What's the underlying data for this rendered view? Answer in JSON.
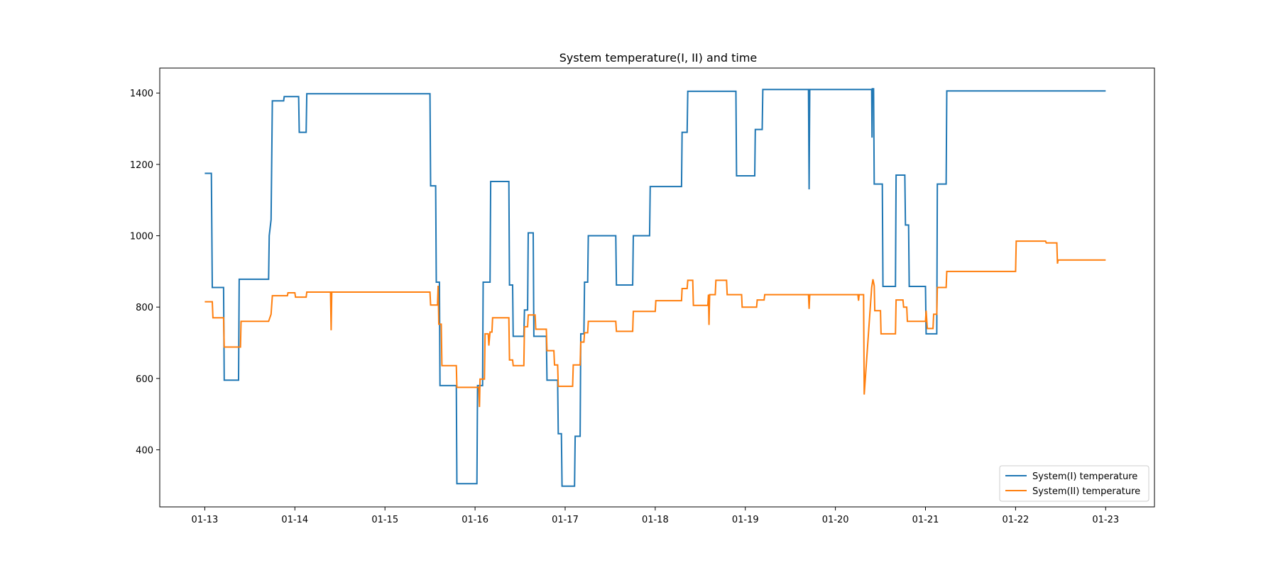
{
  "chart_data": {
    "type": "line",
    "title": "System temperature(I, II) and time",
    "xlabel": "",
    "ylabel": "",
    "x_range": [
      "01-12 12:00",
      "01-23 13:00"
    ],
    "ylim": [
      240,
      1470
    ],
    "x_ticks": [
      "01-13",
      "01-14",
      "01-15",
      "01-16",
      "01-17",
      "01-18",
      "01-19",
      "01-20",
      "01-21",
      "01-22",
      "01-23"
    ],
    "y_ticks": [
      400,
      600,
      800,
      1000,
      1200,
      1400
    ],
    "grid": false,
    "legend_position": "lower-right",
    "series": [
      {
        "name": "System(I) temperature",
        "color": "#1f77b4",
        "points": [
          [
            "01-13 00:00",
            1175
          ],
          [
            "01-13 01:45",
            1175
          ],
          [
            "01-13 02:00",
            855
          ],
          [
            "01-13 05:00",
            855
          ],
          [
            "01-13 05:10",
            595
          ],
          [
            "01-13 09:00",
            595
          ],
          [
            "01-13 09:10",
            878
          ],
          [
            "01-13 17:00",
            878
          ],
          [
            "01-13 17:10",
            1000
          ],
          [
            "01-13 17:40",
            1045
          ],
          [
            "01-13 18:00",
            1378
          ],
          [
            "01-13 21:00",
            1378
          ],
          [
            "01-13 21:10",
            1390
          ],
          [
            "01-14 01:00",
            1390
          ],
          [
            "01-14 01:10",
            1290
          ],
          [
            "01-14 03:00",
            1290
          ],
          [
            "01-14 03:10",
            1398
          ],
          [
            "01-15 12:00",
            1398
          ],
          [
            "01-15 12:10",
            1140
          ],
          [
            "01-15 13:30",
            1140
          ],
          [
            "01-15 13:40",
            870
          ],
          [
            "01-15 14:30",
            870
          ],
          [
            "01-15 14:40",
            580
          ],
          [
            "01-15 19:00",
            580
          ],
          [
            "01-15 19:10",
            305
          ],
          [
            "01-16 00:30",
            305
          ],
          [
            "01-16 00:40",
            580
          ],
          [
            "01-16 02:00",
            580
          ],
          [
            "01-16 02:10",
            870
          ],
          [
            "01-16 04:00",
            870
          ],
          [
            "01-16 04:10",
            1152
          ],
          [
            "01-16 09:00",
            1152
          ],
          [
            "01-16 09:10",
            862
          ],
          [
            "01-16 10:00",
            862
          ],
          [
            "01-16 10:10",
            718
          ],
          [
            "01-16 13:00",
            718
          ],
          [
            "01-16 13:10",
            792
          ],
          [
            "01-16 14:00",
            792
          ],
          [
            "01-16 14:10",
            1008
          ],
          [
            "01-16 15:30",
            1008
          ],
          [
            "01-16 15:40",
            718
          ],
          [
            "01-16 19:00",
            718
          ],
          [
            "01-16 19:10",
            595
          ],
          [
            "01-16 22:00",
            595
          ],
          [
            "01-16 22:10",
            445
          ],
          [
            "01-16 23:00",
            445
          ],
          [
            "01-16 23:10",
            298
          ],
          [
            "01-17 02:30",
            298
          ],
          [
            "01-17 02:40",
            438
          ],
          [
            "01-17 04:00",
            438
          ],
          [
            "01-17 04:10",
            725
          ],
          [
            "01-17 05:00",
            725
          ],
          [
            "01-17 05:10",
            870
          ],
          [
            "01-17 06:00",
            870
          ],
          [
            "01-17 06:10",
            1000
          ],
          [
            "01-17 13:30",
            1000
          ],
          [
            "01-17 13:40",
            862
          ],
          [
            "01-17 18:00",
            862
          ],
          [
            "01-17 18:10",
            1000
          ],
          [
            "01-17 22:30",
            1000
          ],
          [
            "01-17 22:40",
            1138
          ],
          [
            "01-18 07:00",
            1138
          ],
          [
            "01-18 07:10",
            1290
          ],
          [
            "01-18 08:30",
            1290
          ],
          [
            "01-18 08:40",
            1405
          ],
          [
            "01-18 21:30",
            1405
          ],
          [
            "01-18 21:40",
            1168
          ],
          [
            "01-19 02:30",
            1168
          ],
          [
            "01-19 02:40",
            1298
          ],
          [
            "01-19 04:30",
            1298
          ],
          [
            "01-19 04:40",
            1410
          ],
          [
            "01-19 16:50",
            1410
          ],
          [
            "01-19 17:00",
            1130
          ],
          [
            "01-19 17:10",
            1410
          ],
          [
            "01-20 07:30",
            1410
          ],
          [
            "01-20 07:40",
            1410
          ],
          [
            "01-20 09:40",
            1410
          ],
          [
            "01-20 09:45",
            1275
          ],
          [
            "01-20 09:50",
            1412
          ],
          [
            "01-20 10:10",
            1412
          ],
          [
            "01-20 10:20",
            1145
          ],
          [
            "01-20 12:30",
            1145
          ],
          [
            "01-20 12:40",
            858
          ],
          [
            "01-20 16:00",
            858
          ],
          [
            "01-20 16:10",
            1170
          ],
          [
            "01-20 18:30",
            1170
          ],
          [
            "01-20 18:40",
            1030
          ],
          [
            "01-20 19:30",
            1030
          ],
          [
            "01-20 19:40",
            858
          ],
          [
            "01-21 00:00",
            858
          ],
          [
            "01-21 00:10",
            725
          ],
          [
            "01-21 03:00",
            725
          ],
          [
            "01-21 03:10",
            1145
          ],
          [
            "01-21 05:30",
            1145
          ],
          [
            "01-21 05:40",
            1406
          ],
          [
            "01-23 00:00",
            1406
          ]
        ]
      },
      {
        "name": "System(II) temperature",
        "color": "#ff7f0e",
        "points": [
          [
            "01-13 00:00",
            815
          ],
          [
            "01-13 02:00",
            815
          ],
          [
            "01-13 02:10",
            770
          ],
          [
            "01-13 05:00",
            770
          ],
          [
            "01-13 05:10",
            688
          ],
          [
            "01-13 09:30",
            688
          ],
          [
            "01-13 09:40",
            760
          ],
          [
            "01-13 17:00",
            760
          ],
          [
            "01-13 17:40",
            780
          ],
          [
            "01-13 18:00",
            832
          ],
          [
            "01-13 22:00",
            832
          ],
          [
            "01-13 22:10",
            840
          ],
          [
            "01-14 00:00",
            840
          ],
          [
            "01-14 00:10",
            828
          ],
          [
            "01-14 03:00",
            828
          ],
          [
            "01-14 03:10",
            842
          ],
          [
            "01-14 09:30",
            842
          ],
          [
            "01-14 09:40",
            735
          ],
          [
            "01-14 09:50",
            842
          ],
          [
            "01-15 12:00",
            842
          ],
          [
            "01-15 12:10",
            806
          ],
          [
            "01-15 14:00",
            806
          ],
          [
            "01-15 14:10",
            860
          ],
          [
            "01-15 14:20",
            752
          ],
          [
            "01-15 15:00",
            752
          ],
          [
            "01-15 15:10",
            636
          ],
          [
            "01-15 19:00",
            636
          ],
          [
            "01-15 19:10",
            575
          ],
          [
            "01-16 01:00",
            575
          ],
          [
            "01-16 01:10",
            520
          ],
          [
            "01-16 01:20",
            598
          ],
          [
            "01-16 02:30",
            598
          ],
          [
            "01-16 02:40",
            725
          ],
          [
            "01-16 03:30",
            725
          ],
          [
            "01-16 03:40",
            692
          ],
          [
            "01-16 04:00",
            730
          ],
          [
            "01-16 04:30",
            730
          ],
          [
            "01-16 04:40",
            770
          ],
          [
            "01-16 09:00",
            770
          ],
          [
            "01-16 09:10",
            652
          ],
          [
            "01-16 10:00",
            652
          ],
          [
            "01-16 10:10",
            636
          ],
          [
            "01-16 13:00",
            636
          ],
          [
            "01-16 13:10",
            745
          ],
          [
            "01-16 14:00",
            745
          ],
          [
            "01-16 14:10",
            778
          ],
          [
            "01-16 16:00",
            778
          ],
          [
            "01-16 16:10",
            738
          ],
          [
            "01-16 19:00",
            738
          ],
          [
            "01-16 19:10",
            678
          ],
          [
            "01-16 21:00",
            678
          ],
          [
            "01-16 21:10",
            638
          ],
          [
            "01-16 22:00",
            638
          ],
          [
            "01-16 22:10",
            578
          ],
          [
            "01-17 02:00",
            578
          ],
          [
            "01-17 02:10",
            638
          ],
          [
            "01-17 04:00",
            638
          ],
          [
            "01-17 04:10",
            702
          ],
          [
            "01-17 05:00",
            702
          ],
          [
            "01-17 05:10",
            728
          ],
          [
            "01-17 06:00",
            728
          ],
          [
            "01-17 06:10",
            760
          ],
          [
            "01-17 13:30",
            760
          ],
          [
            "01-17 13:40",
            732
          ],
          [
            "01-17 18:00",
            732
          ],
          [
            "01-17 18:10",
            788
          ],
          [
            "01-18 00:00",
            788
          ],
          [
            "01-18 00:10",
            818
          ],
          [
            "01-18 07:00",
            818
          ],
          [
            "01-18 07:10",
            852
          ],
          [
            "01-18 08:30",
            852
          ],
          [
            "01-18 08:40",
            875
          ],
          [
            "01-18 10:00",
            875
          ],
          [
            "01-18 10:10",
            805
          ],
          [
            "01-18 14:00",
            805
          ],
          [
            "01-18 14:10",
            835
          ],
          [
            "01-18 14:20",
            750
          ],
          [
            "01-18 14:30",
            835
          ],
          [
            "01-18 16:00",
            835
          ],
          [
            "01-18 16:10",
            875
          ],
          [
            "01-18 19:00",
            875
          ],
          [
            "01-18 19:10",
            835
          ],
          [
            "01-18 23:00",
            835
          ],
          [
            "01-18 23:10",
            800
          ],
          [
            "01-19 03:00",
            800
          ],
          [
            "01-19 03:10",
            820
          ],
          [
            "01-19 05:00",
            820
          ],
          [
            "01-19 05:10",
            835
          ],
          [
            "01-19 16:50",
            835
          ],
          [
            "01-19 17:00",
            795
          ],
          [
            "01-19 17:10",
            835
          ],
          [
            "01-20 06:00",
            835
          ],
          [
            "01-20 06:10",
            818
          ],
          [
            "01-20 06:20",
            835
          ],
          [
            "01-20 07:30",
            835
          ],
          [
            "01-20 07:40",
            555
          ],
          [
            "01-20 09:40",
            855
          ],
          [
            "01-20 10:00",
            878
          ],
          [
            "01-20 10:20",
            860
          ],
          [
            "01-20 10:30",
            790
          ],
          [
            "01-20 12:00",
            790
          ],
          [
            "01-20 12:10",
            725
          ],
          [
            "01-20 16:00",
            725
          ],
          [
            "01-20 16:10",
            820
          ],
          [
            "01-20 18:00",
            820
          ],
          [
            "01-20 18:10",
            800
          ],
          [
            "01-20 19:00",
            800
          ],
          [
            "01-20 19:10",
            760
          ],
          [
            "01-21 00:00",
            760
          ],
          [
            "01-21 00:10",
            790
          ],
          [
            "01-21 00:30",
            740
          ],
          [
            "01-21 02:00",
            740
          ],
          [
            "01-21 02:10",
            780
          ],
          [
            "01-21 03:00",
            780
          ],
          [
            "01-21 03:10",
            855
          ],
          [
            "01-21 05:30",
            855
          ],
          [
            "01-21 05:40",
            900
          ],
          [
            "01-22 00:00",
            900
          ],
          [
            "01-22 00:10",
            985
          ],
          [
            "01-22 08:00",
            985
          ],
          [
            "01-22 08:10",
            980
          ],
          [
            "01-22 11:00",
            980
          ],
          [
            "01-22 11:10",
            922
          ],
          [
            "01-22 11:20",
            932
          ],
          [
            "01-23 00:00",
            932
          ]
        ]
      }
    ]
  }
}
